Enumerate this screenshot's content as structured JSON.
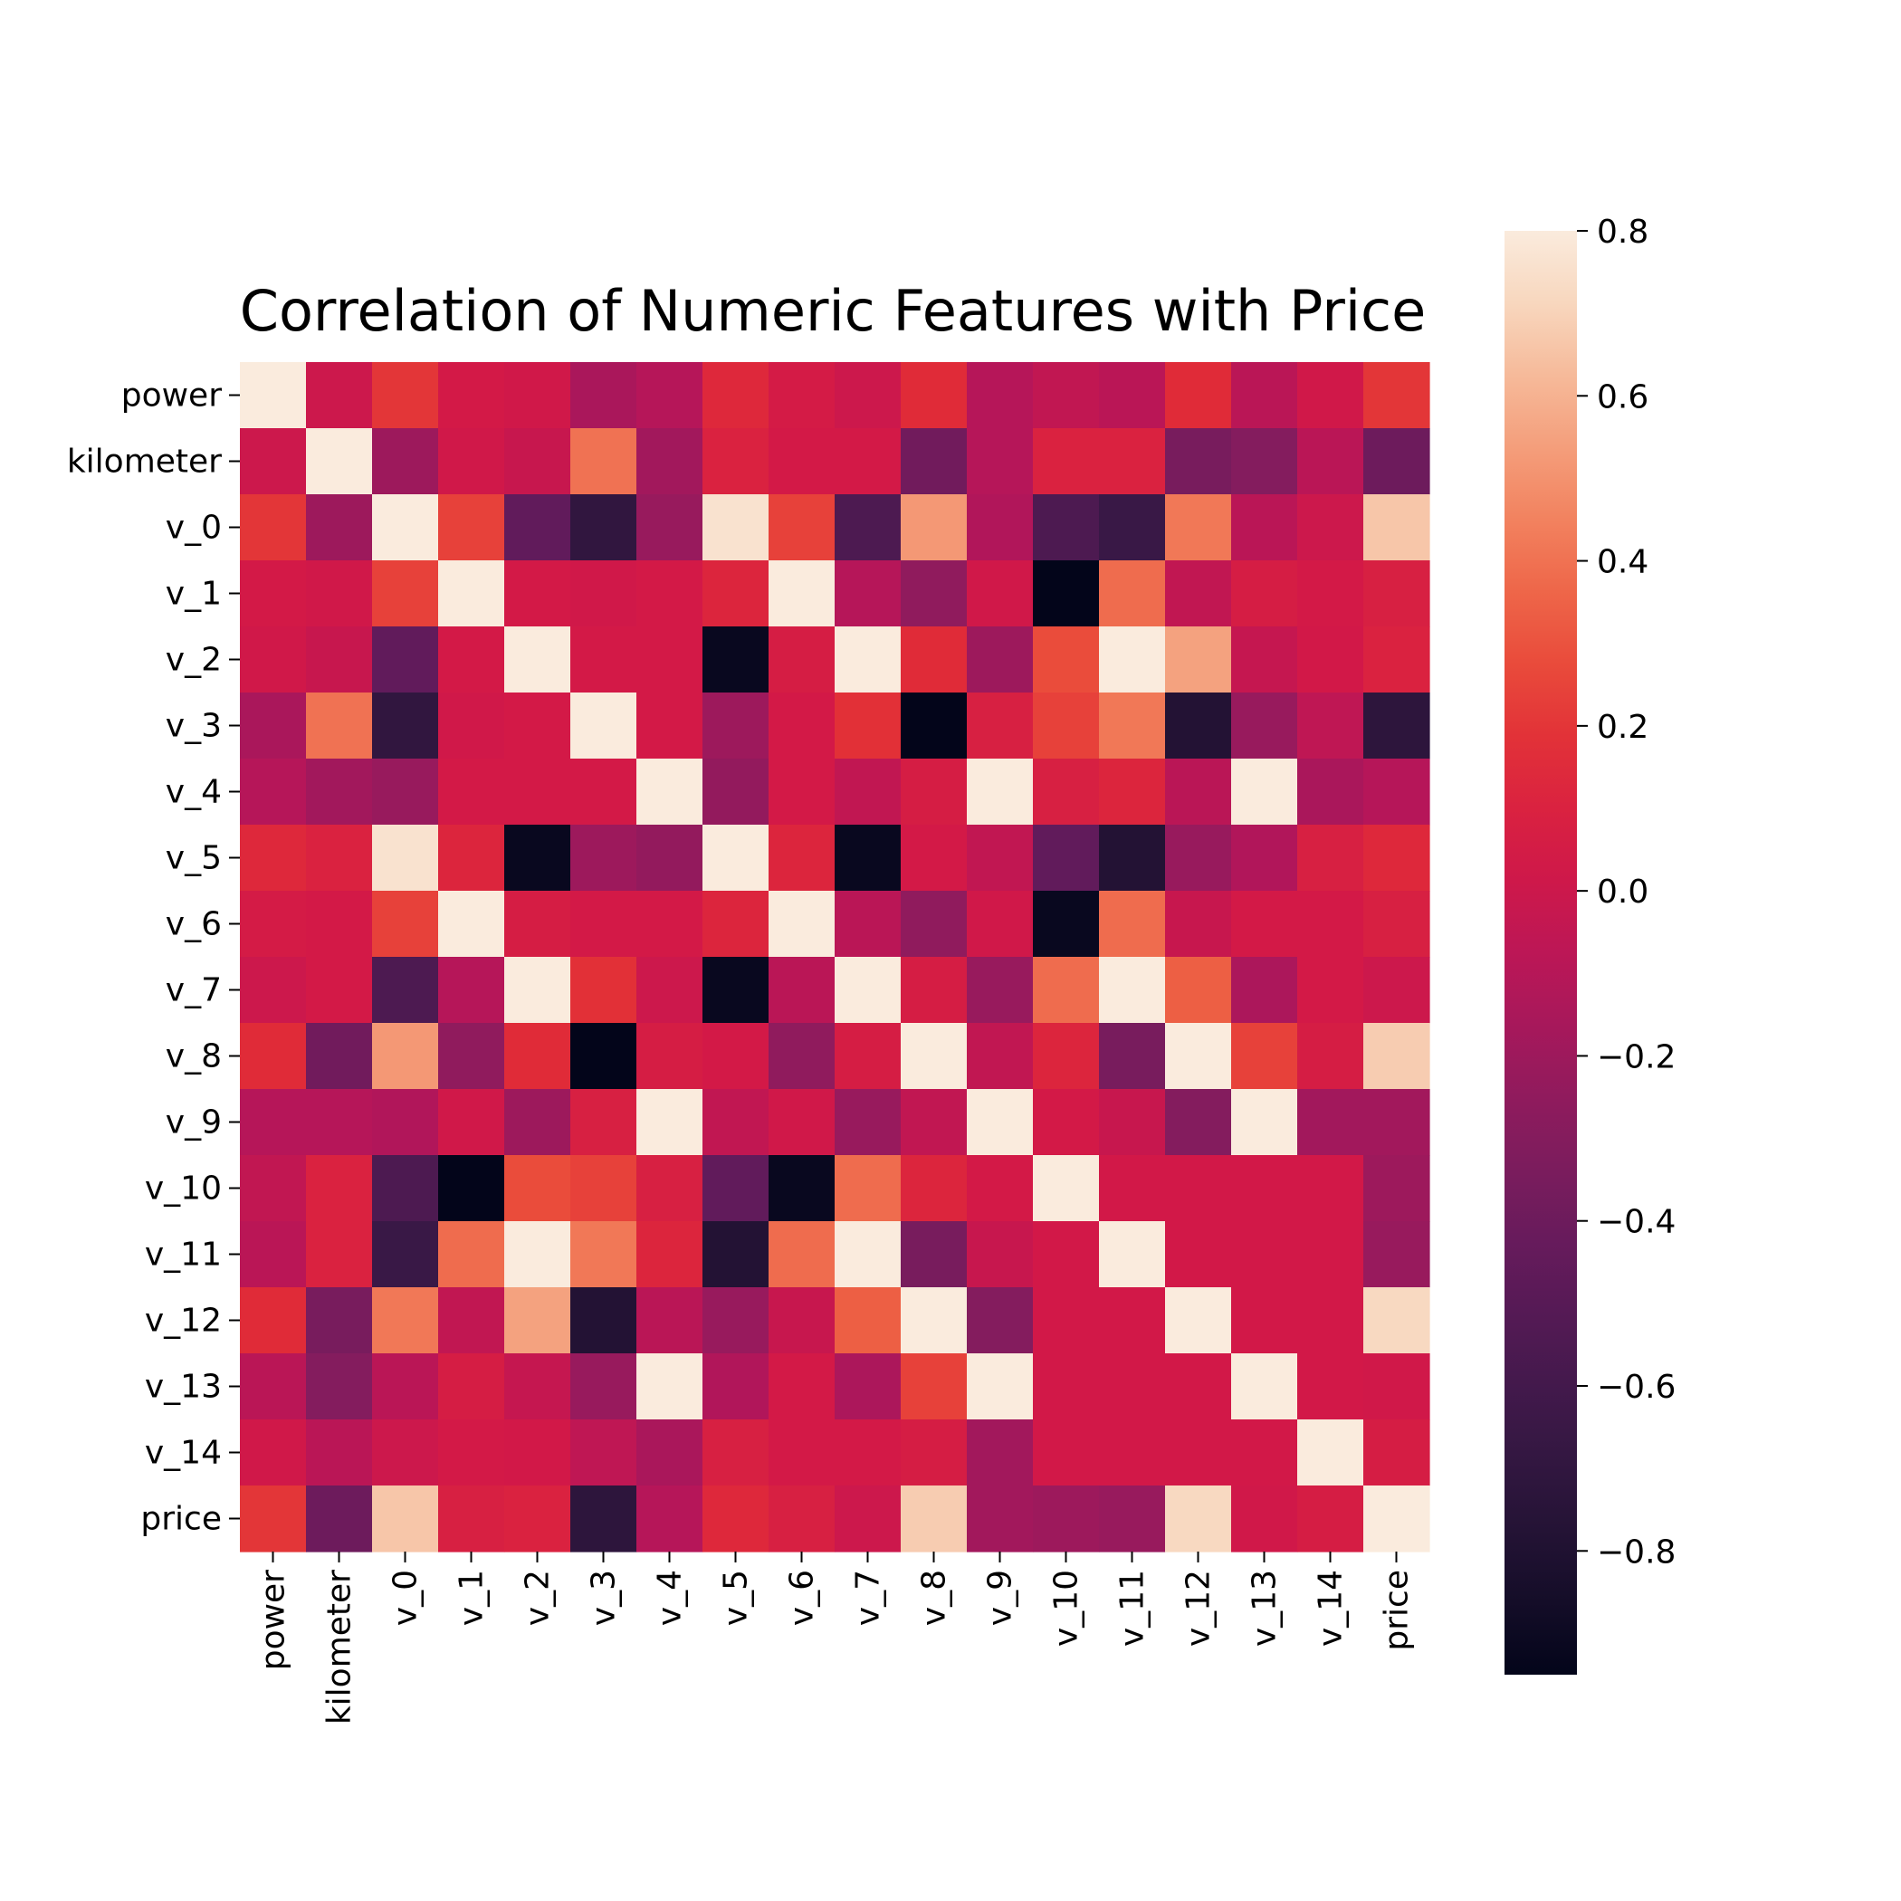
{
  "chart_data": {
    "type": "heatmap",
    "title": "Correlation of Numeric Features with Price",
    "xlabel": "",
    "ylabel": "",
    "labels": [
      "power",
      "kilometer",
      "v_0",
      "v_1",
      "v_2",
      "v_3",
      "v_4",
      "v_5",
      "v_6",
      "v_7",
      "v_8",
      "v_9",
      "v_10",
      "v_11",
      "v_12",
      "v_13",
      "v_14",
      "price"
    ],
    "matrix": [
      [
        0.8,
        0.0,
        0.2,
        0.04,
        0.02,
        -0.15,
        -0.1,
        0.14,
        0.05,
        0.0,
        0.16,
        -0.1,
        -0.05,
        -0.08,
        0.16,
        -0.08,
        0.02,
        0.2
      ],
      [
        0.0,
        0.8,
        -0.2,
        0.02,
        -0.02,
        0.4,
        -0.18,
        0.1,
        0.04,
        0.04,
        -0.38,
        -0.1,
        0.1,
        0.1,
        -0.35,
        -0.3,
        -0.08,
        -0.4
      ],
      [
        0.2,
        -0.2,
        0.8,
        0.24,
        -0.45,
        -0.7,
        -0.22,
        0.76,
        0.24,
        -0.55,
        0.52,
        -0.12,
        -0.55,
        -0.65,
        0.42,
        -0.08,
        0.0,
        0.66
      ],
      [
        0.04,
        0.02,
        0.24,
        0.8,
        0.04,
        0.02,
        0.04,
        0.12,
        0.8,
        -0.1,
        -0.25,
        0.02,
        -0.95,
        0.38,
        -0.05,
        0.06,
        0.04,
        0.08
      ],
      [
        0.02,
        -0.02,
        -0.45,
        0.04,
        0.8,
        0.04,
        0.04,
        -0.92,
        0.06,
        0.8,
        0.16,
        -0.2,
        0.28,
        0.8,
        0.55,
        -0.03,
        0.03,
        0.1
      ],
      [
        -0.15,
        0.4,
        -0.7,
        0.02,
        0.04,
        0.8,
        0.04,
        -0.2,
        0.04,
        0.18,
        -0.95,
        0.08,
        0.24,
        0.42,
        -0.78,
        -0.22,
        -0.06,
        -0.72
      ],
      [
        -0.1,
        -0.18,
        -0.22,
        0.04,
        0.04,
        0.04,
        0.8,
        -0.24,
        0.04,
        -0.05,
        0.06,
        0.8,
        0.08,
        0.12,
        -0.08,
        0.8,
        -0.15,
        -0.1
      ],
      [
        0.14,
        0.1,
        0.76,
        0.12,
        -0.92,
        -0.2,
        -0.24,
        0.8,
        0.12,
        -0.92,
        0.04,
        -0.05,
        -0.45,
        -0.78,
        -0.22,
        -0.12,
        0.08,
        0.14
      ],
      [
        0.05,
        0.04,
        0.24,
        0.8,
        0.06,
        0.04,
        0.04,
        0.12,
        0.8,
        -0.08,
        -0.25,
        0.02,
        -0.92,
        0.38,
        -0.02,
        0.04,
        0.04,
        0.08
      ],
      [
        0.0,
        0.04,
        -0.55,
        -0.1,
        0.8,
        0.18,
        0.0,
        -0.92,
        -0.08,
        0.8,
        0.06,
        -0.22,
        0.38,
        0.8,
        0.34,
        -0.14,
        0.04,
        0.0
      ],
      [
        0.16,
        -0.38,
        0.52,
        -0.25,
        0.16,
        -0.95,
        0.06,
        0.04,
        -0.25,
        0.06,
        0.8,
        -0.05,
        0.12,
        -0.35,
        0.8,
        0.24,
        0.06,
        0.68
      ],
      [
        -0.1,
        -0.1,
        -0.12,
        0.02,
        -0.2,
        0.08,
        0.8,
        -0.05,
        0.02,
        -0.22,
        -0.05,
        0.8,
        0.04,
        -0.02,
        -0.3,
        0.8,
        -0.18,
        -0.18
      ],
      [
        -0.05,
        0.1,
        -0.55,
        -0.95,
        0.28,
        0.24,
        0.08,
        -0.45,
        -0.92,
        0.38,
        0.12,
        0.04,
        0.8,
        0.03,
        0.03,
        0.03,
        0.03,
        -0.2
      ],
      [
        -0.08,
        0.1,
        -0.65,
        0.38,
        0.8,
        0.42,
        0.12,
        -0.78,
        0.38,
        0.8,
        -0.35,
        -0.02,
        0.03,
        0.8,
        0.03,
        0.03,
        0.03,
        -0.22
      ],
      [
        0.16,
        -0.35,
        0.42,
        -0.05,
        0.55,
        -0.78,
        -0.08,
        -0.22,
        -0.02,
        0.34,
        0.8,
        -0.3,
        0.03,
        0.03,
        0.8,
        0.03,
        0.03,
        0.72
      ],
      [
        -0.08,
        -0.3,
        -0.08,
        0.06,
        -0.03,
        -0.22,
        0.8,
        -0.12,
        0.04,
        -0.14,
        0.24,
        0.8,
        0.03,
        0.03,
        0.03,
        0.8,
        0.03,
        0.02
      ],
      [
        0.02,
        -0.08,
        0.0,
        0.04,
        0.03,
        -0.06,
        -0.15,
        0.08,
        0.04,
        0.04,
        0.06,
        -0.18,
        0.03,
        0.03,
        0.03,
        0.03,
        0.8,
        0.06
      ],
      [
        0.2,
        -0.4,
        0.66,
        0.08,
        0.1,
        -0.72,
        -0.1,
        0.14,
        0.08,
        0.0,
        0.68,
        -0.18,
        -0.2,
        -0.22,
        0.72,
        0.02,
        0.06,
        0.8
      ]
    ],
    "colorbar": {
      "min": -0.95,
      "max": 0.8,
      "ticks": [
        "0.8",
        "0.6",
        "0.4",
        "0.2",
        "0.0",
        "−0.2",
        "−0.4",
        "−0.6",
        "−0.8"
      ],
      "tick_values": [
        0.8,
        0.6,
        0.4,
        0.2,
        0.0,
        -0.2,
        -0.4,
        -0.6,
        -0.8
      ]
    },
    "colormap": "rocket",
    "grid": false,
    "legend": "colorbar-right"
  }
}
